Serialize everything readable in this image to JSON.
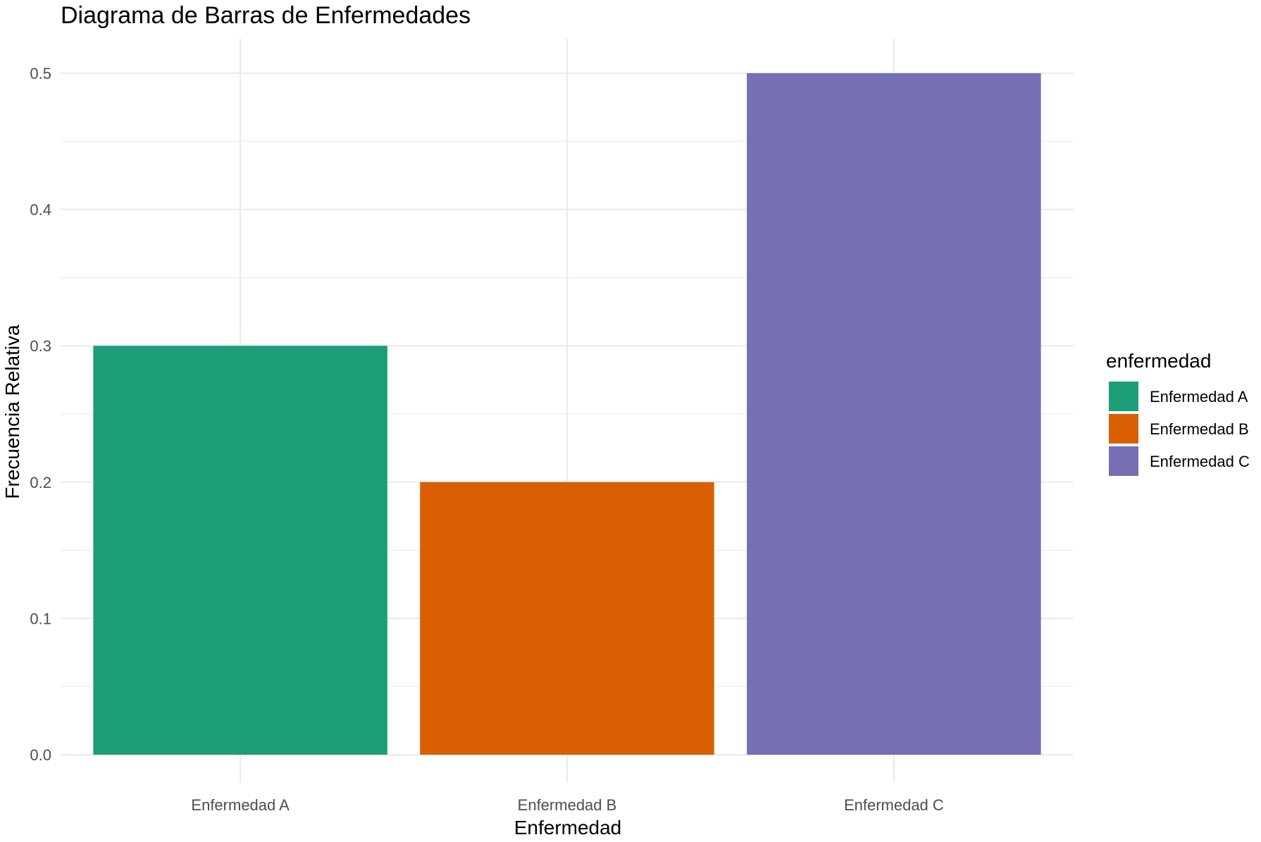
{
  "chart_data": {
    "type": "bar",
    "title": "Diagrama de Barras de Enfermedades",
    "xlabel": "Enfermedad",
    "ylabel": "Frecuencia Relativa",
    "categories": [
      "Enfermedad A",
      "Enfermedad B",
      "Enfermedad C"
    ],
    "values": [
      0.3,
      0.2,
      0.5
    ],
    "colors": [
      "#1b9e77",
      "#d95f02",
      "#7570b3"
    ],
    "ylim": [
      0,
      0.5
    ],
    "yticks": [
      "0.0",
      "0.1",
      "0.2",
      "0.3",
      "0.4",
      "0.5"
    ],
    "grid": true,
    "legend": {
      "title": "enfermedad",
      "position": "right",
      "entries": [
        "Enfermedad A",
        "Enfermedad B",
        "Enfermedad C"
      ]
    }
  }
}
